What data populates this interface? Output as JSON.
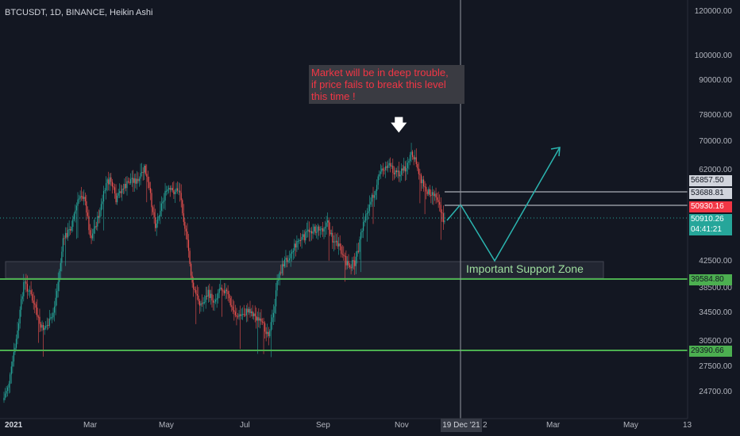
{
  "symbol_line": "BTCUSDT, 1D, BINANCE, Heikin Ashi",
  "annotation": "Market will be in deep trouble,\nif price fails to break this level\nthis time !",
  "zone_label": "Important Support Zone",
  "colors": {
    "background": "#131722",
    "up": "#26a69a",
    "down": "#ef5350",
    "support": "#4caf50",
    "projection": "#2bb5b0",
    "note_bg": "#3a3b42",
    "note_text": "#f23645"
  },
  "price_scale": [
    "120000.00",
    "100000.00",
    "90000.00",
    "78000.00",
    "70000.00",
    "62000.00",
    "42500.00",
    "38500.00",
    "34500.00",
    "30500.00",
    "27500.00",
    "24700.00"
  ],
  "price_tags": [
    {
      "label": "56857.50",
      "bg": "#d1d4dc",
      "fg": "#131722"
    },
    {
      "label": "53688.81",
      "bg": "#d1d4dc",
      "fg": "#131722"
    },
    {
      "label": "50930.16",
      "bg": "#f23645",
      "fg": "#ffffff"
    },
    {
      "label": "50910.26",
      "bg": "#26a69a",
      "fg": "#ffffff"
    },
    {
      "label": "04:41:21",
      "bg": "#26a69a",
      "fg": "#ffffff"
    },
    {
      "label": "39584.80",
      "bg": "#4caf50",
      "fg": "#131722"
    },
    {
      "label": "29390.66",
      "bg": "#4caf50",
      "fg": "#131722"
    }
  ],
  "x_labels": [
    "2021",
    "Mar",
    "May",
    "Jul",
    "Sep",
    "Nov",
    "Mar",
    "May",
    "13"
  ],
  "x_cursor_label": "19 Dec '21",
  "x_partial": "2",
  "chart_data": {
    "type": "candlestick",
    "chart_style": "Heikin Ashi",
    "scale": "log",
    "x": [
      "2021-01",
      "2021-02",
      "2021-03",
      "2021-04",
      "2021-05",
      "2021-06",
      "2021-07",
      "2021-08",
      "2021-09",
      "2021-10",
      "2021-11",
      "2021-12"
    ],
    "approx_close": [
      33000,
      45000,
      58000,
      57000,
      37000,
      35000,
      40000,
      47000,
      43500,
      61000,
      57000,
      50900
    ],
    "horizontal_levels": [
      56857.5,
      53688.81,
      39584.8,
      29390.66
    ],
    "support_zone": [
      39584.8,
      42500
    ],
    "projection_path": [
      50930,
      42500,
      67000
    ],
    "last_price": 50910.26,
    "cursor_date": "19 Dec '21"
  }
}
